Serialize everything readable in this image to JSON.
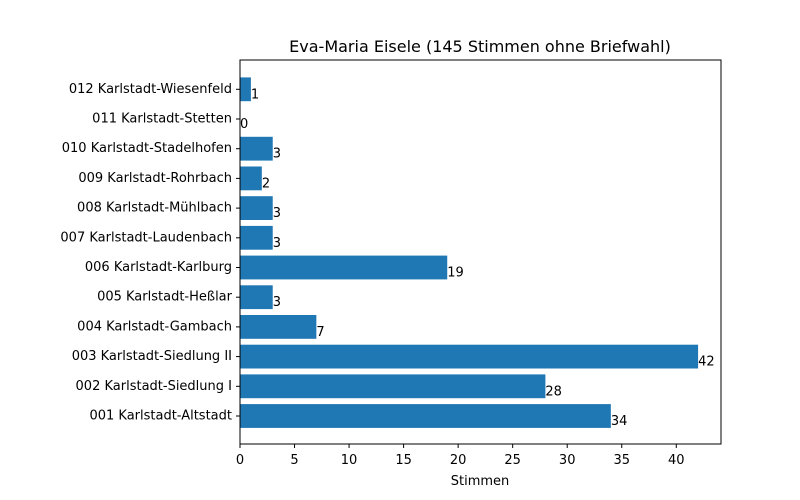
{
  "chart_data": {
    "type": "bar",
    "orientation": "horizontal",
    "title": "Eva-Maria Eisele (145 Stimmen ohne Briefwahl)",
    "xlabel": "Stimmen",
    "ylabel": "",
    "xlim": [
      0,
      44.1
    ],
    "xticks": [
      0,
      5,
      10,
      15,
      20,
      25,
      30,
      35,
      40
    ],
    "grid": false,
    "bar_color": "#1f77b4",
    "categories": [
      "001 Karlstadt-Altstadt",
      "002 Karlstadt-Siedlung I",
      "003 Karlstadt-Siedlung II",
      "004 Karlstadt-Gambach",
      "005 Karlstadt-Heßlar",
      "006 Karlstadt-Karlburg",
      "007 Karlstadt-Laudenbach",
      "008 Karlstadt-Mühlbach",
      "009 Karlstadt-Rohrbach",
      "010 Karlstadt-Stadelhofen",
      "011 Karlstadt-Stetten",
      "012 Karlstadt-Wiesenfeld"
    ],
    "values": [
      34,
      28,
      42,
      7,
      3,
      19,
      3,
      3,
      2,
      3,
      0,
      1
    ]
  }
}
